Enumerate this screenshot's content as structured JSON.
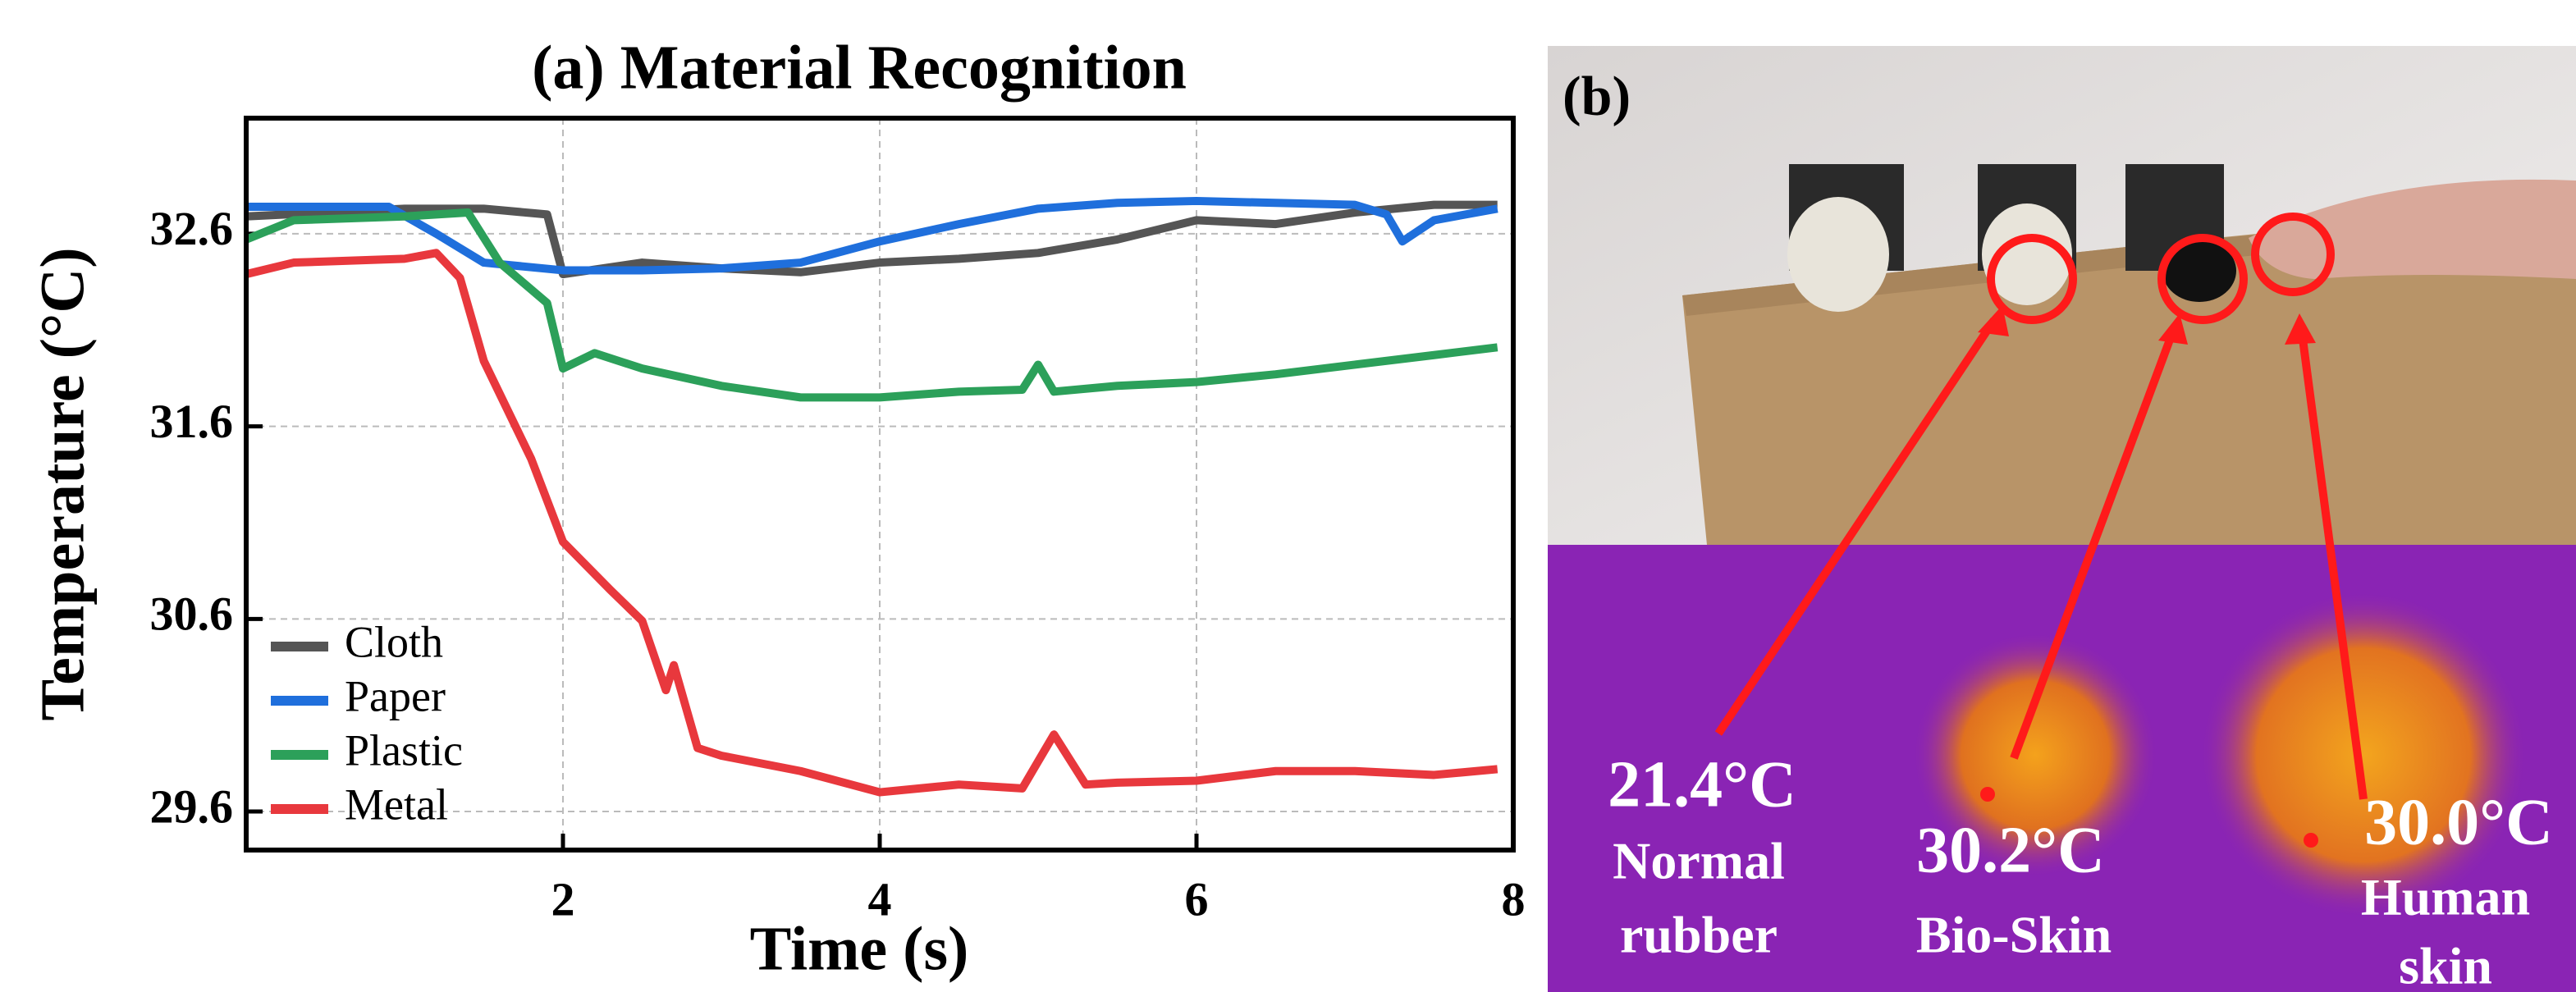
{
  "chart_data": {
    "type": "line",
    "title": "(a) Material Recognition",
    "x_label": "Time (s)",
    "y_label": "Temperature (°C)",
    "xlim": [
      0,
      8
    ],
    "xticks": [
      2,
      4,
      6,
      8
    ],
    "ylim": [
      29.4,
      33.2
    ],
    "yticks": [
      32.6,
      31.6,
      30.6,
      29.6
    ],
    "grid": true,
    "legend": "lower left",
    "series": [
      {
        "name": "Cloth",
        "color": "#555555",
        "x": [
          0,
          0.5,
          1.0,
          1.5,
          1.9,
          2.0,
          2.5,
          3.0,
          3.5,
          4.0,
          4.5,
          5.0,
          5.5,
          6.0,
          6.5,
          7.0,
          7.5,
          7.9
        ],
        "values": [
          32.69,
          32.71,
          32.73,
          32.73,
          32.7,
          32.39,
          32.45,
          32.42,
          32.4,
          32.45,
          32.47,
          32.5,
          32.57,
          32.67,
          32.65,
          32.71,
          32.75,
          32.75
        ]
      },
      {
        "name": "Paper",
        "color": "#1f6fdc",
        "x": [
          0,
          0.5,
          0.9,
          1.2,
          1.5,
          2.0,
          2.5,
          3.0,
          3.5,
          4.0,
          4.5,
          5.0,
          5.5,
          6.0,
          6.5,
          7.0,
          7.2,
          7.3,
          7.5,
          7.9
        ],
        "values": [
          32.74,
          32.74,
          32.74,
          32.6,
          32.45,
          32.41,
          32.41,
          32.42,
          32.45,
          32.56,
          32.65,
          32.73,
          32.76,
          32.77,
          32.76,
          32.75,
          32.7,
          32.56,
          32.67,
          32.73
        ]
      },
      {
        "name": "Plastic",
        "color": "#2ca05a",
        "x": [
          0,
          0.3,
          1.0,
          1.4,
          1.6,
          1.9,
          2.0,
          2.2,
          2.5,
          3.0,
          3.5,
          4.0,
          4.5,
          4.9,
          5.0,
          5.1,
          5.5,
          6.0,
          6.5,
          7.0,
          7.5,
          7.9
        ],
        "values": [
          32.57,
          32.67,
          32.69,
          32.71,
          32.45,
          32.24,
          31.9,
          31.98,
          31.9,
          31.81,
          31.75,
          31.75,
          31.78,
          31.79,
          31.92,
          31.78,
          31.81,
          31.83,
          31.87,
          31.92,
          31.97,
          32.01
        ]
      },
      {
        "name": "Metal",
        "color": "#e8383d",
        "x": [
          0,
          0.3,
          1.0,
          1.2,
          1.35,
          1.5,
          1.8,
          2.0,
          2.3,
          2.5,
          2.65,
          2.7,
          2.85,
          3.0,
          3.5,
          4.0,
          4.5,
          4.9,
          5.1,
          5.3,
          5.5,
          6.0,
          6.5,
          7.0,
          7.5,
          7.9
        ],
        "values": [
          32.39,
          32.45,
          32.47,
          32.5,
          32.37,
          31.94,
          31.43,
          31.0,
          30.75,
          30.59,
          30.23,
          30.36,
          29.93,
          29.89,
          29.81,
          29.7,
          29.74,
          29.72,
          30.0,
          29.74,
          29.75,
          29.76,
          29.81,
          29.81,
          29.79,
          29.82
        ]
      }
    ]
  },
  "photo": {
    "panel_label": "(b)",
    "annotations": [
      {
        "temperature": "21.4°C",
        "label": [
          "Normal",
          "rubber"
        ]
      },
      {
        "temperature": "30.2°C",
        "label": [
          "Bio-Skin"
        ]
      },
      {
        "temperature": "30.0°C",
        "label": [
          "Human",
          "skin"
        ]
      }
    ]
  }
}
